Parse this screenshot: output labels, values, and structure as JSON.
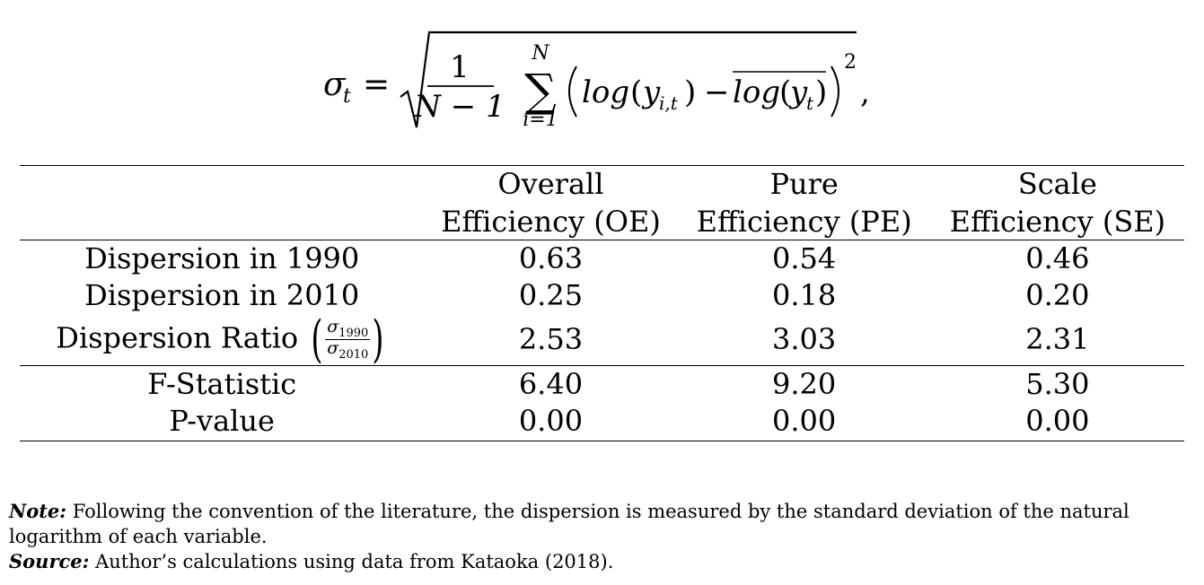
{
  "formula": {
    "lhs": "σ",
    "lhs_sub": "t",
    "equals": "=",
    "frac_num": "1",
    "frac_den": "N − 1",
    "sum_upper": "N",
    "sum_lower": "i=1",
    "sum_symbol": "∑",
    "term_log": "log",
    "term_y": "y",
    "term_y_sub": "i,t",
    "minus": "−",
    "term_bar_log": "log",
    "term_bar_y": "y",
    "term_bar_y_sub": "t",
    "exponent": "2",
    "trailing": ","
  },
  "table": {
    "header_top": [
      "",
      "Overall",
      "Pure",
      "Scale"
    ],
    "header_bottom": [
      "",
      "Efficiency (OE)",
      "Efficiency (PE)",
      "Efficiency (SE)"
    ],
    "rows": [
      {
        "label": "Dispersion in 1990",
        "values": [
          "0.63",
          "0.54",
          "0.46"
        ]
      },
      {
        "label": "Dispersion in 2010",
        "values": [
          "0.25",
          "0.18",
          "0.20"
        ]
      },
      {
        "label": "Dispersion Ratio",
        "ratio_num": "σ",
        "ratio_num_sub": "1990",
        "ratio_den": "σ",
        "ratio_den_sub": "2010",
        "values": [
          "2.53",
          "3.03",
          "2.31"
        ]
      },
      {
        "label": "F-Statistic",
        "values": [
          "6.40",
          "9.20",
          "5.30"
        ]
      },
      {
        "label": "P-value",
        "values": [
          "0.00",
          "0.00",
          "0.00"
        ]
      }
    ]
  },
  "notes": {
    "note_label": "Note:",
    "note_text": " Following the convention of the literature, the dispersion is measured by the standard deviation of the natural logarithm of each variable.",
    "source_label": "Source:",
    "source_text": " Author’s calculations using data from Kataoka (2018)."
  }
}
